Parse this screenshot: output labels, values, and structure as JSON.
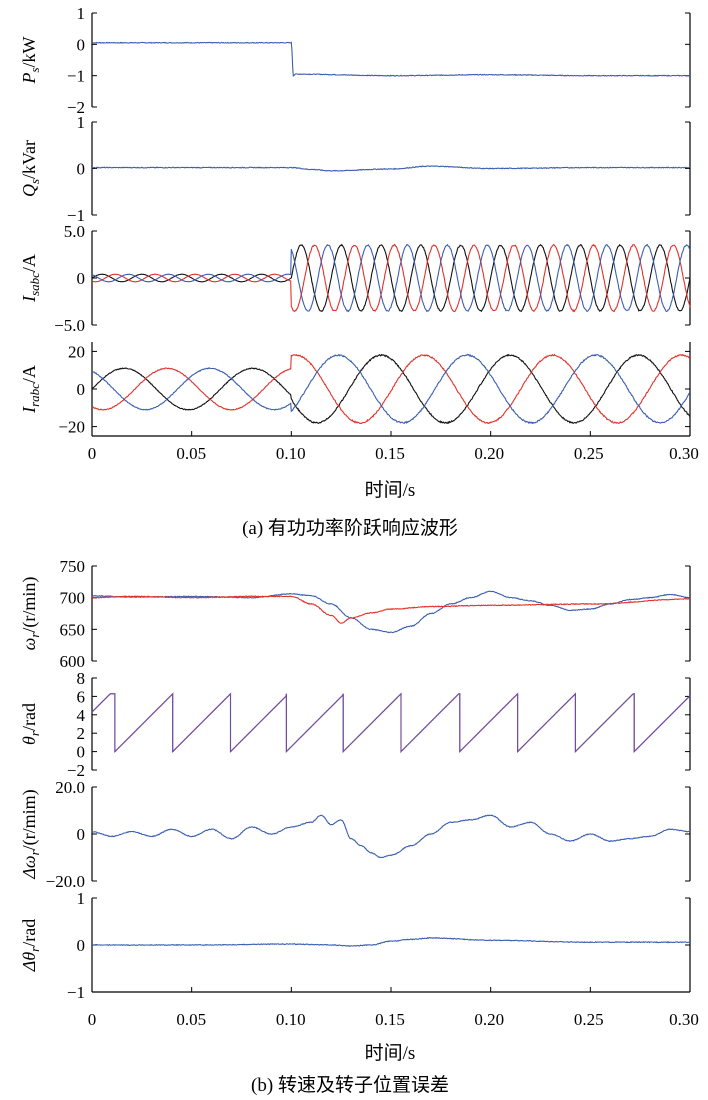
{
  "figure_a": {
    "xlabel": "时间/s",
    "caption": "(a) 有功功率阶跃响应波形",
    "x_ticks": [
      "0",
      "0.05",
      "0.10",
      "0.15",
      "0.20",
      "0.25",
      "0.30"
    ]
  },
  "figure_b": {
    "xlabel": "时间/s",
    "caption": "(b) 转速及转子位置误差",
    "x_ticks": [
      "0",
      "0.05",
      "0.10",
      "0.15",
      "0.20",
      "0.25",
      "0.30"
    ]
  },
  "colors": {
    "blue": "#3a5fb0",
    "red": "#e0322a",
    "black": "#111111",
    "purple": "#7a4a9a"
  },
  "chart_data": [
    {
      "id": "Ps",
      "type": "line",
      "figure": "a",
      "ylabel_main": "P",
      "ylabel_sub": "s",
      "ylabel_unit": "/kW",
      "ylim": [
        -2,
        1
      ],
      "yticks": [
        "1",
        "0",
        "−1",
        "−2"
      ],
      "ytick_values": [
        1,
        0,
        -1,
        -2
      ],
      "xlim": [
        0,
        0.3
      ],
      "series": [
        {
          "color": "blue",
          "x": [
            0,
            0.1,
            0.101,
            0.102,
            0.15,
            0.2,
            0.25,
            0.3
          ],
          "values": [
            0.05,
            0.05,
            -1.0,
            -0.95,
            -1.0,
            -0.97,
            -1.0,
            -1.0
          ]
        }
      ]
    },
    {
      "id": "Qs",
      "type": "line",
      "figure": "a",
      "ylabel_main": "Q",
      "ylabel_sub": "s",
      "ylabel_unit": "/kVar",
      "ylim": [
        -1,
        1
      ],
      "yticks": [
        "1",
        "0",
        "−1"
      ],
      "ytick_values": [
        1,
        0,
        -1
      ],
      "xlim": [
        0,
        0.3
      ],
      "series": [
        {
          "color": "blue",
          "x": [
            0,
            0.1,
            0.11,
            0.12,
            0.15,
            0.17,
            0.2,
            0.25,
            0.3
          ],
          "values": [
            0.02,
            0.02,
            -0.02,
            -0.05,
            -0.01,
            0.05,
            0.0,
            0.02,
            0.02
          ]
        }
      ]
    },
    {
      "id": "Isabc",
      "type": "line",
      "figure": "a",
      "ylabel_main": "I",
      "ylabel_sub": "sabc",
      "ylabel_unit": "/A",
      "ylim": [
        -5,
        5
      ],
      "yticks": [
        "5.0",
        "0",
        "−5.0"
      ],
      "ytick_values": [
        5,
        0,
        -5
      ],
      "xlim": [
        0,
        0.3
      ],
      "series": [
        {
          "color": "black",
          "amp_before": 0.4,
          "amp_after": 3.5,
          "freq_hz": 50,
          "phase_deg": 0,
          "step_time": 0.1
        },
        {
          "color": "red",
          "amp_before": 0.4,
          "amp_after": 3.5,
          "freq_hz": 50,
          "phase_deg": -120,
          "step_time": 0.1
        },
        {
          "color": "blue",
          "amp_before": 0.4,
          "amp_after": 3.5,
          "freq_hz": 50,
          "phase_deg": 120,
          "step_time": 0.1
        }
      ]
    },
    {
      "id": "Irabc",
      "type": "line",
      "figure": "a",
      "ylabel_main": "I",
      "ylabel_sub": "rabc",
      "ylabel_unit": "/A",
      "ylim": [
        -25,
        25
      ],
      "yticks": [
        "20",
        "0",
        "−20"
      ],
      "ytick_values": [
        20,
        0,
        -20
      ],
      "xlim": [
        0,
        0.3
      ],
      "series": [
        {
          "color": "black",
          "amp_before": 11,
          "amp_after": 18,
          "freq_hz": 15.5,
          "phase_deg": 0,
          "step_time": 0.1
        },
        {
          "color": "red",
          "amp_before": 11,
          "amp_after": 18,
          "freq_hz": 15.5,
          "phase_deg": -120,
          "step_time": 0.1
        },
        {
          "color": "blue",
          "amp_before": 11,
          "amp_after": 18,
          "freq_hz": 15.5,
          "phase_deg": 120,
          "step_time": 0.1
        }
      ]
    },
    {
      "id": "omega",
      "type": "line",
      "figure": "b",
      "ylabel_main": "ω",
      "ylabel_sub": "r",
      "ylabel_unit": "/(r/min)",
      "ylim": [
        600,
        750
      ],
      "yticks": [
        "750",
        "700",
        "650",
        "600"
      ],
      "ytick_values": [
        750,
        700,
        650,
        600
      ],
      "xlim": [
        0,
        0.3
      ],
      "series": [
        {
          "color": "blue",
          "x": [
            0,
            0.02,
            0.05,
            0.08,
            0.1,
            0.11,
            0.12,
            0.13,
            0.14,
            0.15,
            0.16,
            0.17,
            0.18,
            0.19,
            0.2,
            0.21,
            0.22,
            0.23,
            0.24,
            0.25,
            0.26,
            0.27,
            0.28,
            0.29,
            0.3
          ],
          "values": [
            703,
            701,
            702,
            700,
            706,
            703,
            690,
            668,
            650,
            645,
            655,
            675,
            690,
            700,
            710,
            700,
            695,
            688,
            680,
            682,
            690,
            697,
            700,
            705,
            700
          ]
        },
        {
          "color": "red",
          "x": [
            0,
            0.02,
            0.05,
            0.08,
            0.1,
            0.11,
            0.12,
            0.125,
            0.13,
            0.14,
            0.15,
            0.17,
            0.2,
            0.25,
            0.3
          ],
          "values": [
            700,
            702,
            700,
            702,
            702,
            690,
            672,
            660,
            668,
            676,
            682,
            686,
            688,
            690,
            698
          ]
        }
      ]
    },
    {
      "id": "theta",
      "type": "line",
      "figure": "b",
      "ylabel_main": "θ",
      "ylabel_sub": "r",
      "ylabel_unit": "/rad",
      "ylim": [
        -2,
        8
      ],
      "yticks": [
        "8",
        "6",
        "4",
        "2",
        "0",
        "−2"
      ],
      "ytick_values": [
        8,
        6,
        4,
        2,
        0,
        -2
      ],
      "xlim": [
        0,
        0.3
      ],
      "series": [
        {
          "color": "blue",
          "type": "sawtooth",
          "start_value": 4.3,
          "max": 6.283,
          "resets": [
            0.0115,
            0.0405,
            0.0695,
            0.0975,
            0.126,
            0.155,
            0.1845,
            0.2135,
            0.2425,
            0.272
          ]
        },
        {
          "color": "purple",
          "type": "sawtooth",
          "start_value": 4.3,
          "max": 6.283,
          "resets": [
            0.0115,
            0.0405,
            0.0695,
            0.0975,
            0.126,
            0.155,
            0.1845,
            0.2135,
            0.2425,
            0.272
          ]
        }
      ]
    },
    {
      "id": "domega",
      "type": "line",
      "figure": "b",
      "ylabel_main": "Δω",
      "ylabel_sub": "r",
      "ylabel_unit": "/(r/mim)",
      "ylim": [
        -20,
        20
      ],
      "yticks": [
        "20.0",
        "0",
        "−20.0"
      ],
      "ytick_values": [
        20,
        0,
        -20
      ],
      "xlim": [
        0,
        0.3
      ],
      "series": [
        {
          "color": "blue",
          "x": [
            0,
            0.01,
            0.02,
            0.03,
            0.04,
            0.05,
            0.06,
            0.07,
            0.08,
            0.09,
            0.1,
            0.11,
            0.115,
            0.12,
            0.125,
            0.13,
            0.135,
            0.14,
            0.145,
            0.15,
            0.16,
            0.17,
            0.18,
            0.19,
            0.2,
            0.21,
            0.22,
            0.23,
            0.24,
            0.25,
            0.26,
            0.27,
            0.28,
            0.29,
            0.3
          ],
          "values": [
            1,
            -1,
            1,
            -1,
            2,
            -1,
            2,
            -2,
            3,
            0,
            3,
            5,
            8,
            4,
            6,
            -2,
            -5,
            -8,
            -10,
            -9,
            -5,
            0,
            5,
            6,
            8,
            3,
            5,
            0,
            -3,
            0,
            -3,
            -2,
            -1,
            2,
            1
          ]
        }
      ]
    },
    {
      "id": "dtheta",
      "type": "line",
      "figure": "b",
      "ylabel_main": "Δθ",
      "ylabel_sub": "r",
      "ylabel_unit": "/rad",
      "ylim": [
        -1,
        1
      ],
      "yticks": [
        "1",
        "0",
        "−1"
      ],
      "ytick_values": [
        1,
        0,
        -1
      ],
      "xlim": [
        0,
        0.3
      ],
      "series": [
        {
          "color": "blue",
          "x": [
            0,
            0.05,
            0.1,
            0.12,
            0.13,
            0.14,
            0.15,
            0.16,
            0.17,
            0.2,
            0.25,
            0.3
          ],
          "values": [
            0.0,
            0.0,
            0.02,
            0.0,
            -0.02,
            0.0,
            0.08,
            0.12,
            0.15,
            0.1,
            0.06,
            0.06
          ]
        }
      ]
    }
  ]
}
